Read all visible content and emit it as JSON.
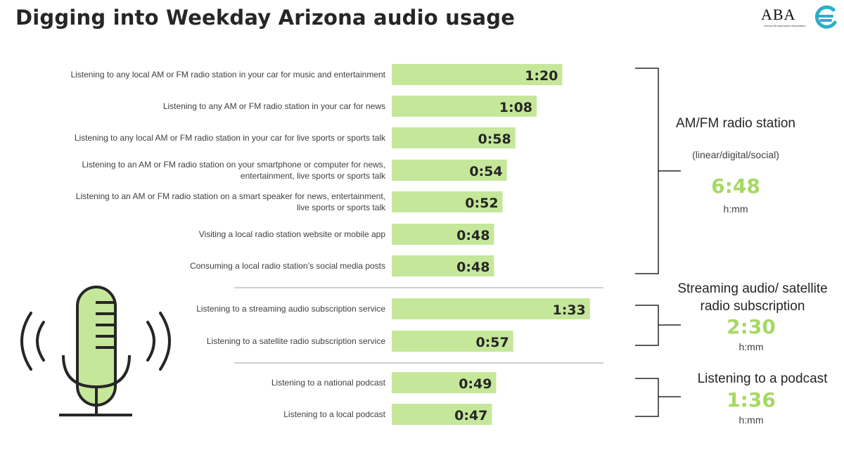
{
  "page": {
    "title": "Digging into Weekday Arizona audio usage",
    "logo_text": "ABA",
    "logo_subtext": "Arizona Broadcasters Association"
  },
  "colors": {
    "bar": "#c5e79a",
    "total": "#a6d864",
    "text": "#262626",
    "bracket": "#262626",
    "divider": "#bfbfbf",
    "icon_fill": "#c5e79a",
    "logo_teal": "#2ab0c8"
  },
  "groups": [
    {
      "title": "AM/FM radio station",
      "subtitle": "(linear/digital/social)",
      "total": "6:48",
      "unit": "h:mm"
    },
    {
      "title": "Streaming audio/ satellite radio subscription",
      "total": "2:30",
      "unit": "h:mm"
    },
    {
      "title": "Listening to a podcast",
      "total": "1:36",
      "unit": "h:mm"
    }
  ],
  "chart_data": {
    "type": "bar",
    "orientation": "horizontal",
    "unit": "h:mm",
    "categories": [
      "Listening to any local AM or FM radio station in your car for music and entertainment",
      "Listening to any AM or FM radio station in your car for news",
      "Listening to any local AM or FM radio station in your car for live sports or sports talk",
      "Listening to an AM or FM radio station on your smartphone or computer for news, entertainment, live sports or sports talk",
      "Listening to an AM or FM radio station on a smart speaker for news, entertainment, live sports or sports talk",
      "Visiting a local radio station website or mobile app",
      "Consuming a local radio station’s social media posts",
      "Listening to a streaming audio subscription service",
      "Listening to a satellite radio subscription service",
      "Listening to a national podcast",
      "Listening to a local podcast"
    ],
    "values": [
      80,
      68,
      58,
      54,
      52,
      48,
      48,
      93,
      57,
      49,
      47
    ],
    "value_labels": [
      "1:20",
      "1:08",
      "0:58",
      "0:54",
      "0:52",
      "0:48",
      "0:48",
      "1:33",
      "0:57",
      "0:49",
      "0:47"
    ],
    "group_index": [
      0,
      0,
      0,
      0,
      0,
      0,
      0,
      1,
      1,
      2,
      2
    ],
    "xlim": [
      0,
      96
    ],
    "grid": false,
    "legend": "none"
  }
}
